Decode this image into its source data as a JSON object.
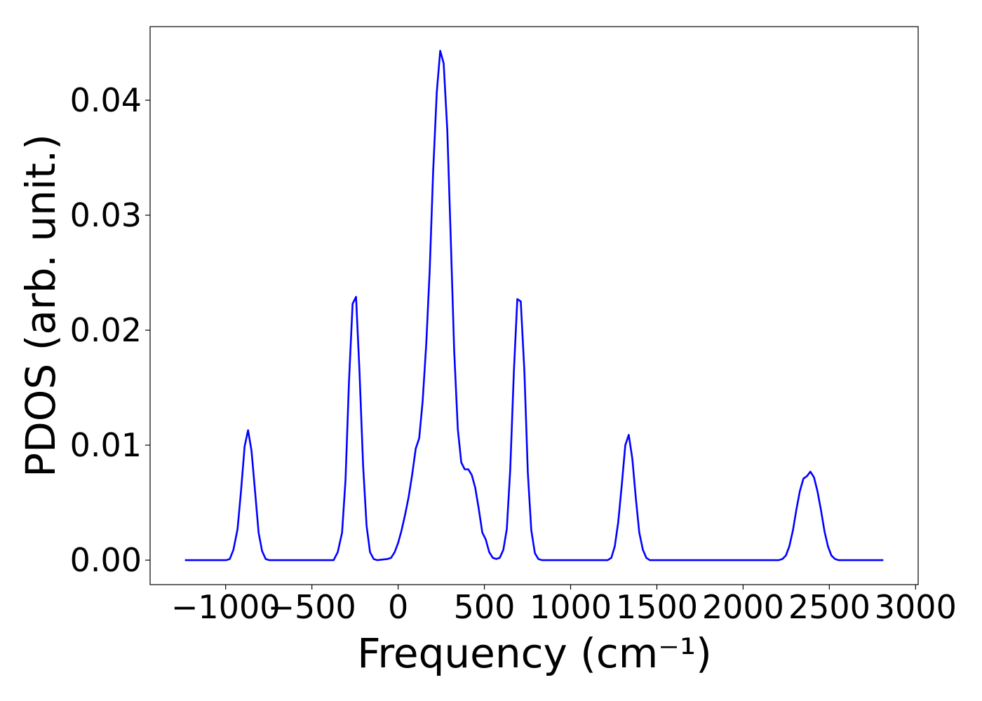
{
  "chart_data": {
    "type": "line",
    "xlabel": "Frequency (cm⁻¹)",
    "ylabel": "PDOS (arb. unit.)",
    "xlim": [
      -1438,
      3015
    ],
    "ylim": [
      -0.00213,
      0.0464
    ],
    "xticks": [
      {
        "value": -1000,
        "label": "−1000"
      },
      {
        "value": -500,
        "label": "−500"
      },
      0,
      500,
      1000,
      1500,
      2000,
      2500,
      3000
    ],
    "yticks": [
      {
        "value": 0,
        "label": "0.00"
      },
      {
        "value": 0.01,
        "label": "0.01"
      },
      {
        "value": 0.02,
        "label": "0.02"
      },
      {
        "value": 0.03,
        "label": "0.03"
      },
      {
        "value": 0.04,
        "label": "0.04"
      }
    ],
    "grid": false,
    "series": [
      {
        "color": "#0000ff",
        "x": [
          -1236,
          -996,
          -976,
          -955,
          -931,
          -911,
          -890,
          -870,
          -850,
          -829,
          -809,
          -789,
          -768,
          -748,
          -374,
          -350,
          -325,
          -305,
          -285,
          -264,
          -244,
          -224,
          -203,
          -183,
          -163,
          -142,
          -122,
          -61,
          -41,
          -20,
          0,
          20,
          41,
          61,
          81,
          102,
          122,
          142,
          163,
          183,
          203,
          224,
          244,
          264,
          285,
          305,
          325,
          346,
          366,
          386,
          407,
          427,
          447,
          467,
          488,
          508,
          528,
          549,
          569,
          589,
          610,
          630,
          650,
          671,
          691,
          711,
          732,
          752,
          772,
          793,
          813,
          833,
          1215,
          1236,
          1256,
          1276,
          1297,
          1317,
          1337,
          1358,
          1378,
          1398,
          1419,
          1439,
          1459,
          2207,
          2228,
          2248,
          2268,
          2289,
          2309,
          2329,
          2350,
          2370,
          2390,
          2411,
          2431,
          2451,
          2472,
          2492,
          2512,
          2533,
          2553,
          2813
        ],
        "values": [
          0,
          0,
          0.0001,
          0.0009,
          0.0027,
          0.006,
          0.0099,
          0.0113,
          0.0095,
          0.0059,
          0.0024,
          0.0008,
          0.0001,
          0,
          0,
          0.0007,
          0.0024,
          0.007,
          0.0155,
          0.0223,
          0.0229,
          0.0164,
          0.0082,
          0.003,
          0.0007,
          0.0001,
          0,
          0.0001,
          0.0002,
          0.0007,
          0.0015,
          0.0026,
          0.004,
          0.0055,
          0.0074,
          0.0097,
          0.0106,
          0.0138,
          0.0188,
          0.0252,
          0.0338,
          0.0407,
          0.0443,
          0.0432,
          0.0374,
          0.028,
          0.0182,
          0.0114,
          0.0085,
          0.0079,
          0.0079,
          0.0074,
          0.0063,
          0.0045,
          0.0024,
          0.0018,
          0.0007,
          0.0002,
          0.0001,
          0.0002,
          0.0009,
          0.0027,
          0.0079,
          0.0164,
          0.0227,
          0.0225,
          0.0164,
          0.0076,
          0.0026,
          0.0006,
          0.0001,
          0,
          0,
          0.0002,
          0.0012,
          0.0033,
          0.0066,
          0.01,
          0.0109,
          0.0088,
          0.0054,
          0.0024,
          0.0009,
          0.0002,
          0,
          0,
          0.0001,
          0.0004,
          0.0012,
          0.0026,
          0.0044,
          0.006,
          0.0071,
          0.0073,
          0.0077,
          0.0072,
          0.006,
          0.0044,
          0.0025,
          0.0012,
          0.0004,
          0.0001,
          0,
          0
        ]
      }
    ]
  }
}
